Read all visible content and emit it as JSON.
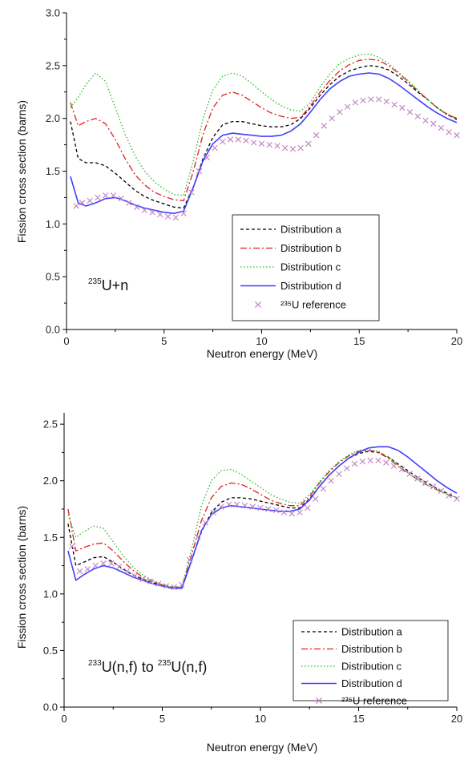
{
  "chart_data": [
    {
      "type": "line",
      "title": "",
      "xlabel": "Neutron energy (MeV)",
      "ylabel": "Fission cross section (barns)",
      "xlim": [
        0,
        20
      ],
      "ylim": [
        0,
        3.0
      ],
      "xticks": [
        "0",
        "5",
        "10",
        "15",
        "20"
      ],
      "yticks": [
        "0.0",
        "0.5",
        "1.0",
        "1.5",
        "2.0",
        "2.5",
        "3.0"
      ],
      "annotation": {
        "sup": "235",
        "text": "U+n"
      },
      "legend_position": "bottom-right",
      "series": [
        {
          "name": "Distribution a",
          "color": "#000000",
          "style": "dash",
          "x": [
            0.2,
            0.6,
            1,
            1.5,
            2,
            2.5,
            3,
            3.5,
            4,
            4.5,
            5,
            5.5,
            6,
            6.5,
            7,
            7.5,
            8,
            8.5,
            9,
            9.5,
            10,
            10.5,
            11,
            11.5,
            12,
            12.5,
            13,
            13.5,
            14,
            14.5,
            15,
            15.5,
            16,
            16.5,
            17,
            17.5,
            18,
            18.5,
            19,
            19.5,
            20
          ],
          "y": [
            1.97,
            1.62,
            1.58,
            1.58,
            1.55,
            1.48,
            1.4,
            1.32,
            1.26,
            1.22,
            1.19,
            1.16,
            1.15,
            1.35,
            1.62,
            1.82,
            1.94,
            1.97,
            1.97,
            1.95,
            1.93,
            1.92,
            1.92,
            1.94,
            2.0,
            2.1,
            2.22,
            2.32,
            2.4,
            2.45,
            2.48,
            2.5,
            2.49,
            2.46,
            2.4,
            2.33,
            2.25,
            2.18,
            2.1,
            2.04,
            1.99
          ]
        },
        {
          "name": "Distribution b",
          "color": "#e02020",
          "style": "dashdot",
          "x": [
            0.2,
            0.6,
            1,
            1.5,
            2,
            2.5,
            3,
            3.5,
            4,
            4.5,
            5,
            5.5,
            6,
            6.5,
            7,
            7.5,
            8,
            8.5,
            9,
            9.5,
            10,
            10.5,
            11,
            11.5,
            12,
            12.5,
            13,
            13.5,
            14,
            14.5,
            15,
            15.5,
            16,
            16.5,
            17,
            17.5,
            18,
            18.5,
            19,
            19.5,
            20
          ],
          "y": [
            2.15,
            1.93,
            1.97,
            2.0,
            1.95,
            1.8,
            1.62,
            1.47,
            1.37,
            1.3,
            1.26,
            1.23,
            1.22,
            1.5,
            1.85,
            2.1,
            2.22,
            2.25,
            2.22,
            2.16,
            2.1,
            2.05,
            2.02,
            2.0,
            2.01,
            2.12,
            2.25,
            2.36,
            2.45,
            2.51,
            2.55,
            2.56,
            2.55,
            2.5,
            2.43,
            2.35,
            2.26,
            2.18,
            2.1,
            2.04,
            2.0
          ]
        },
        {
          "name": "Distribution c",
          "color": "#30c030",
          "style": "dot",
          "x": [
            0.2,
            0.6,
            1,
            1.5,
            2,
            2.5,
            3,
            3.5,
            4,
            4.5,
            5,
            5.5,
            6,
            6.5,
            7,
            7.5,
            8,
            8.5,
            9,
            9.5,
            10,
            10.5,
            11,
            11.5,
            12,
            12.5,
            13,
            13.5,
            14,
            14.5,
            15,
            15.5,
            16,
            16.5,
            17,
            17.5,
            18,
            18.5,
            19,
            19.5,
            20
          ],
          "y": [
            2.1,
            2.2,
            2.32,
            2.43,
            2.35,
            2.1,
            1.85,
            1.65,
            1.5,
            1.4,
            1.33,
            1.28,
            1.27,
            1.6,
            2.0,
            2.27,
            2.4,
            2.43,
            2.4,
            2.33,
            2.25,
            2.18,
            2.12,
            2.08,
            2.07,
            2.15,
            2.3,
            2.42,
            2.52,
            2.57,
            2.6,
            2.61,
            2.58,
            2.52,
            2.44,
            2.36,
            2.27,
            2.18,
            2.1,
            2.03,
            1.99
          ]
        },
        {
          "name": "Distribution d",
          "color": "#4040ff",
          "style": "solid",
          "x": [
            0.2,
            0.6,
            1,
            1.5,
            2,
            2.5,
            3,
            3.5,
            4,
            4.5,
            5,
            5.5,
            6,
            6.5,
            7,
            7.5,
            8,
            8.5,
            9,
            9.5,
            10,
            10.5,
            11,
            11.5,
            12,
            12.5,
            13,
            13.5,
            14,
            14.5,
            15,
            15.5,
            16,
            16.5,
            17,
            17.5,
            18,
            18.5,
            19,
            19.5,
            20
          ],
          "y": [
            1.45,
            1.2,
            1.17,
            1.2,
            1.24,
            1.25,
            1.22,
            1.18,
            1.15,
            1.13,
            1.11,
            1.1,
            1.12,
            1.35,
            1.6,
            1.76,
            1.84,
            1.86,
            1.85,
            1.84,
            1.83,
            1.83,
            1.84,
            1.88,
            1.95,
            2.06,
            2.18,
            2.28,
            2.35,
            2.4,
            2.42,
            2.43,
            2.42,
            2.38,
            2.32,
            2.25,
            2.18,
            2.11,
            2.05,
            2.0,
            1.96
          ]
        },
        {
          "name": "²³⁵U reference",
          "color": "#c080c0",
          "style": "x-markers",
          "x": [
            0.5,
            0.8,
            1.2,
            1.6,
            2.0,
            2.4,
            2.8,
            3.2,
            3.6,
            4.0,
            4.4,
            4.8,
            5.2,
            5.6,
            6.0,
            6.4,
            6.8,
            7.2,
            7.6,
            8.0,
            8.4,
            8.8,
            9.2,
            9.6,
            10.0,
            10.4,
            10.8,
            11.2,
            11.6,
            12.0,
            12.4,
            12.8,
            13.2,
            13.6,
            14.0,
            14.4,
            14.8,
            15.2,
            15.6,
            16.0,
            16.4,
            16.8,
            17.2,
            17.6,
            18.0,
            18.4,
            18.8,
            19.2,
            19.6,
            20.0
          ],
          "y": [
            1.17,
            1.2,
            1.22,
            1.25,
            1.27,
            1.27,
            1.24,
            1.2,
            1.16,
            1.13,
            1.11,
            1.09,
            1.07,
            1.06,
            1.1,
            1.3,
            1.5,
            1.63,
            1.72,
            1.78,
            1.8,
            1.8,
            1.79,
            1.77,
            1.76,
            1.75,
            1.74,
            1.72,
            1.71,
            1.72,
            1.76,
            1.84,
            1.93,
            2.0,
            2.06,
            2.11,
            2.15,
            2.17,
            2.18,
            2.18,
            2.16,
            2.13,
            2.1,
            2.06,
            2.02,
            1.98,
            1.95,
            1.91,
            1.87,
            1.84
          ]
        }
      ]
    },
    {
      "type": "line",
      "title": "",
      "xlabel": "Neutron energy (MeV)",
      "ylabel": "Fission cross section (barns)",
      "xlim": [
        0,
        20
      ],
      "ylim": [
        0,
        2.6
      ],
      "xticks": [
        "0",
        "5",
        "10",
        "15",
        "20"
      ],
      "yticks": [
        "0.0",
        "0.5",
        "1.0",
        "1.5",
        "2.0",
        "2.5"
      ],
      "annotation": {
        "sup1": "233",
        "text1": "U(n,f) to ",
        "sup2": "235",
        "text2": "U(n,f)"
      },
      "legend_position": "bottom-right",
      "series": [
        {
          "name": "Distribution a",
          "color": "#000000",
          "style": "dash",
          "x": [
            0.2,
            0.6,
            1,
            1.5,
            2,
            2.5,
            3,
            3.5,
            4,
            4.5,
            5,
            5.5,
            6,
            6.5,
            7,
            7.5,
            8,
            8.5,
            9,
            9.5,
            10,
            10.5,
            11,
            11.5,
            12,
            12.5,
            13,
            13.5,
            14,
            14.5,
            15,
            15.5,
            16,
            16.5,
            17,
            17.5,
            18,
            18.5,
            19,
            19.5,
            20
          ],
          "y": [
            1.62,
            1.25,
            1.28,
            1.32,
            1.33,
            1.28,
            1.22,
            1.17,
            1.13,
            1.1,
            1.08,
            1.06,
            1.06,
            1.3,
            1.55,
            1.72,
            1.81,
            1.85,
            1.85,
            1.84,
            1.82,
            1.8,
            1.78,
            1.76,
            1.76,
            1.84,
            1.95,
            2.05,
            2.13,
            2.2,
            2.24,
            2.26,
            2.25,
            2.21,
            2.15,
            2.09,
            2.03,
            1.98,
            1.93,
            1.89,
            1.85
          ]
        },
        {
          "name": "Distribution b",
          "color": "#e02020",
          "style": "dashdot",
          "x": [
            0.2,
            0.6,
            1,
            1.5,
            2,
            2.5,
            3,
            3.5,
            4,
            4.5,
            5,
            5.5,
            6,
            6.5,
            7,
            7.5,
            8,
            8.5,
            9,
            9.5,
            10,
            10.5,
            11,
            11.5,
            12,
            12.5,
            13,
            13.5,
            14,
            14.5,
            15,
            15.5,
            16,
            16.5,
            17,
            17.5,
            18,
            18.5,
            19,
            19.5,
            20
          ],
          "y": [
            1.75,
            1.38,
            1.41,
            1.44,
            1.45,
            1.38,
            1.29,
            1.21,
            1.15,
            1.11,
            1.08,
            1.06,
            1.06,
            1.35,
            1.65,
            1.85,
            1.95,
            1.98,
            1.97,
            1.93,
            1.88,
            1.83,
            1.8,
            1.78,
            1.78,
            1.86,
            1.98,
            2.08,
            2.16,
            2.22,
            2.26,
            2.27,
            2.25,
            2.2,
            2.13,
            2.07,
            2.01,
            1.96,
            1.92,
            1.88,
            1.85
          ]
        },
        {
          "name": "Distribution c",
          "color": "#30c030",
          "style": "dot",
          "x": [
            0.2,
            0.6,
            1,
            1.5,
            2,
            2.5,
            3,
            3.5,
            4,
            4.5,
            5,
            5.5,
            6,
            6.5,
            7,
            7.5,
            8,
            8.5,
            9,
            9.5,
            10,
            10.5,
            11,
            11.5,
            12,
            12.5,
            13,
            13.5,
            14,
            14.5,
            15,
            15.5,
            16,
            16.5,
            17,
            17.5,
            18,
            18.5,
            19,
            19.5,
            20
          ],
          "y": [
            1.7,
            1.5,
            1.55,
            1.6,
            1.58,
            1.46,
            1.34,
            1.24,
            1.17,
            1.12,
            1.08,
            1.06,
            1.06,
            1.4,
            1.78,
            2.0,
            2.09,
            2.1,
            2.06,
            2.0,
            1.94,
            1.88,
            1.84,
            1.81,
            1.8,
            1.88,
            1.99,
            2.09,
            2.17,
            2.23,
            2.27,
            2.28,
            2.26,
            2.21,
            2.14,
            2.07,
            2.01,
            1.96,
            1.92,
            1.88,
            1.85
          ]
        },
        {
          "name": "Distribution d",
          "color": "#4040ff",
          "style": "solid",
          "x": [
            0.2,
            0.6,
            1,
            1.5,
            2,
            2.5,
            3,
            3.5,
            4,
            4.5,
            5,
            5.5,
            6,
            6.5,
            7,
            7.5,
            8,
            8.5,
            9,
            9.5,
            10,
            10.5,
            11,
            11.5,
            12,
            12.5,
            13,
            13.5,
            14,
            14.5,
            15,
            15.5,
            16,
            16.5,
            17,
            17.5,
            18,
            18.5,
            19,
            19.5,
            20
          ],
          "y": [
            1.38,
            1.12,
            1.17,
            1.22,
            1.25,
            1.23,
            1.19,
            1.15,
            1.12,
            1.09,
            1.07,
            1.05,
            1.05,
            1.3,
            1.56,
            1.7,
            1.76,
            1.78,
            1.77,
            1.76,
            1.75,
            1.74,
            1.73,
            1.73,
            1.75,
            1.83,
            1.95,
            2.05,
            2.13,
            2.2,
            2.25,
            2.29,
            2.3,
            2.3,
            2.27,
            2.21,
            2.14,
            2.07,
            2.0,
            1.94,
            1.89
          ]
        },
        {
          "name": "²³⁵U reference",
          "color": "#c080c0",
          "style": "x-markers",
          "x": [
            0.4,
            0.8,
            1.2,
            1.6,
            2.0,
            2.4,
            2.8,
            3.2,
            3.6,
            4.0,
            4.4,
            4.8,
            5.2,
            5.6,
            6.0,
            6.4,
            6.8,
            7.2,
            7.6,
            8.0,
            8.4,
            8.8,
            9.2,
            9.6,
            10.0,
            10.4,
            10.8,
            11.2,
            11.6,
            12.0,
            12.4,
            12.8,
            13.2,
            13.6,
            14.0,
            14.4,
            14.8,
            15.2,
            15.6,
            16.0,
            16.4,
            16.8,
            17.2,
            17.6,
            18.0,
            18.4,
            18.8,
            19.2,
            19.6,
            20.0
          ],
          "y": [
            1.42,
            1.2,
            1.22,
            1.25,
            1.27,
            1.27,
            1.24,
            1.2,
            1.16,
            1.13,
            1.11,
            1.09,
            1.07,
            1.06,
            1.08,
            1.3,
            1.5,
            1.63,
            1.72,
            1.77,
            1.79,
            1.79,
            1.78,
            1.77,
            1.76,
            1.75,
            1.74,
            1.72,
            1.71,
            1.72,
            1.76,
            1.84,
            1.93,
            2.0,
            2.06,
            2.11,
            2.15,
            2.17,
            2.18,
            2.18,
            2.16,
            2.13,
            2.1,
            2.06,
            2.02,
            1.98,
            1.95,
            1.91,
            1.87,
            1.84
          ]
        }
      ]
    }
  ]
}
